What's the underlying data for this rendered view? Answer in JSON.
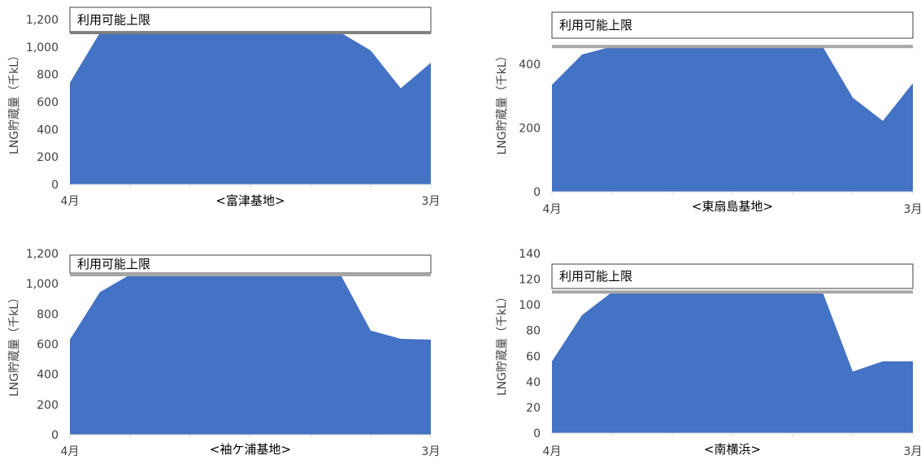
{
  "chart_data": [
    {
      "type": "area",
      "title": "<富津基地>",
      "xlabel": "<富津基地>",
      "ylabel": "LNG貯蔵量（千kL）",
      "x_tick_labels": [
        "4月",
        "3月"
      ],
      "yticks": [
        0,
        200,
        400,
        600,
        800,
        1000,
        1200
      ],
      "ytick_labels": [
        "0",
        "200",
        "400",
        "600",
        "800",
        "1,000",
        "1,200"
      ],
      "ylim": [
        0,
        1200
      ],
      "limit_label": "利用可能上限",
      "limit_value": 1105,
      "values": [
        740,
        1105,
        1105,
        1105,
        1105,
        1105,
        1105,
        1105,
        1105,
        1105,
        975,
        700,
        885
      ],
      "colors": {
        "area": "#4472C4",
        "limit": "#7F7F7F"
      }
    },
    {
      "type": "area",
      "title": "<東扇島基地>",
      "xlabel": "<東扇島基地>",
      "ylabel": "LNG貯蔵量（千kL）",
      "x_tick_labels": [
        "4月",
        "3月"
      ],
      "yticks": [
        0,
        200,
        400
      ],
      "ytick_labels": [
        "0",
        "200",
        "400"
      ],
      "ylim": [
        0,
        560
      ],
      "limit_label": "利用可能上限",
      "limit_value": 455,
      "values": [
        335,
        430,
        455,
        455,
        455,
        455,
        455,
        455,
        455,
        455,
        295,
        222,
        340
      ],
      "colors": {
        "area": "#4472C4",
        "limit": "#A6A6A6"
      }
    },
    {
      "type": "area",
      "title": "<袖ケ浦基地>",
      "xlabel": "<袖ケ浦基地>",
      "ylabel": "LNG貯蔵量（千kL）",
      "x_tick_labels": [
        "4月",
        "3月"
      ],
      "yticks": [
        0,
        200,
        400,
        600,
        800,
        1000,
        1200
      ],
      "ytick_labels": [
        "0",
        "200",
        "400",
        "600",
        "800",
        "1,000",
        "1,200"
      ],
      "ylim": [
        0,
        1200
      ],
      "limit_label": "利用可能上限",
      "limit_value": 1060,
      "values": [
        630,
        945,
        1060,
        1060,
        1060,
        1060,
        1060,
        1060,
        1060,
        1060,
        690,
        635,
        630
      ],
      "colors": {
        "area": "#4472C4",
        "limit": "#A6A6A6"
      }
    },
    {
      "type": "area",
      "title": "<南横浜>",
      "xlabel": "<南横浜>",
      "ylabel": "LNG貯蔵量（千kL）",
      "x_tick_labels": [
        "4月",
        "3月"
      ],
      "yticks": [
        0,
        20,
        40,
        60,
        80,
        100,
        120,
        140
      ],
      "ytick_labels": [
        "0",
        "20",
        "40",
        "60",
        "80",
        "100",
        "120",
        "140"
      ],
      "ylim": [
        0,
        140
      ],
      "limit_label": "利用可能上限",
      "limit_value": 110,
      "values": [
        56,
        92,
        110,
        110,
        110,
        110,
        110,
        110,
        110,
        110,
        48,
        56,
        56
      ],
      "colors": {
        "area": "#4472C4",
        "limit": "#A6A6A6"
      }
    }
  ]
}
